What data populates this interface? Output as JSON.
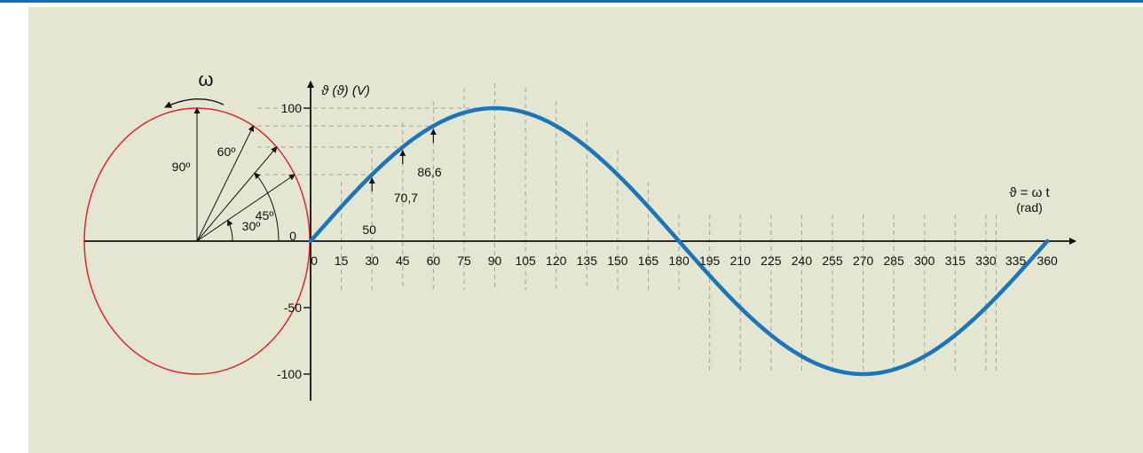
{
  "colors": {
    "background": "#e4e6d1",
    "top_rule": "#1f6fb0",
    "curve": "#1a75bb",
    "circle": "#d92b2b",
    "grid": "#a3a49d",
    "ink": "#111111"
  },
  "labels": {
    "omega": "ω",
    "y_axis": "ϑ (ϑ) (V)",
    "x_axis_line1": "ϑ = ω t",
    "x_axis_line2": "(rad)",
    "origin_zero": "0"
  },
  "phasor_angles": [
    {
      "deg": 90,
      "label": "90º"
    },
    {
      "deg": 60,
      "label": "60º"
    },
    {
      "deg": 45,
      "label": "45º"
    },
    {
      "deg": 30,
      "label": "30º"
    }
  ],
  "value_markers": [
    {
      "angle": 30,
      "value": 50,
      "label": "50"
    },
    {
      "angle": 45,
      "value": 70.7,
      "label": "70,7"
    },
    {
      "angle": 60,
      "value": 86.6,
      "label": "86,6"
    }
  ],
  "chart_data": {
    "type": "line",
    "amplitude": 100,
    "x_ticks": [
      0,
      15,
      30,
      45,
      60,
      75,
      90,
      105,
      120,
      135,
      150,
      165,
      180,
      195,
      210,
      225,
      240,
      255,
      270,
      285,
      300,
      315,
      330,
      335,
      360
    ],
    "y_ticks": [
      {
        "value": 100,
        "label": "100"
      },
      {
        "value": -50,
        "label": "-50"
      },
      {
        "value": -100,
        "label": "-100"
      }
    ],
    "xlim": [
      0,
      360
    ],
    "ylim": [
      -100,
      100
    ]
  }
}
